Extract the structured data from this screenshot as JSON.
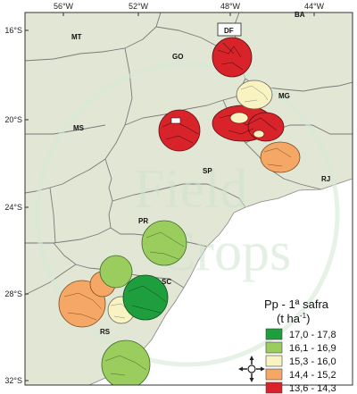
{
  "axes": {
    "top_ticks": [
      "56°W",
      "52°W",
      "48°W",
      "44°W"
    ],
    "left_ticks": [
      "16°S",
      "20°S",
      "24°S",
      "28°S",
      "32°S"
    ]
  },
  "states": {
    "mt": "MT",
    "go": "GO",
    "df": "DF",
    "mg": "MG",
    "ms": "MS",
    "sp": "SP",
    "rj": "RJ",
    "pr": "PR",
    "sc": "SC",
    "rs": "RS",
    "ba": "BA"
  },
  "watermark": {
    "line1": "Field",
    "line2": "Crops"
  },
  "legend": {
    "title": "Pp - 1ª safra",
    "units_prefix": "(t ha",
    "units_exp": "-1",
    "units_suffix": ")",
    "items": [
      {
        "label": "17,0 - 17,8",
        "color": "#1e9e3c"
      },
      {
        "label": "16,1 - 16,9",
        "color": "#9bcc5e"
      },
      {
        "label": "15,3 - 16,0",
        "color": "#f8f3c0"
      },
      {
        "label": "14,4 - 15,2",
        "color": "#f5a866"
      },
      {
        "label": "13,6 - 14,3",
        "color": "#d8232a"
      }
    ]
  },
  "colors": {
    "land": "#e2e6d4",
    "ocean": "#ffffff",
    "border": "#777777"
  }
}
